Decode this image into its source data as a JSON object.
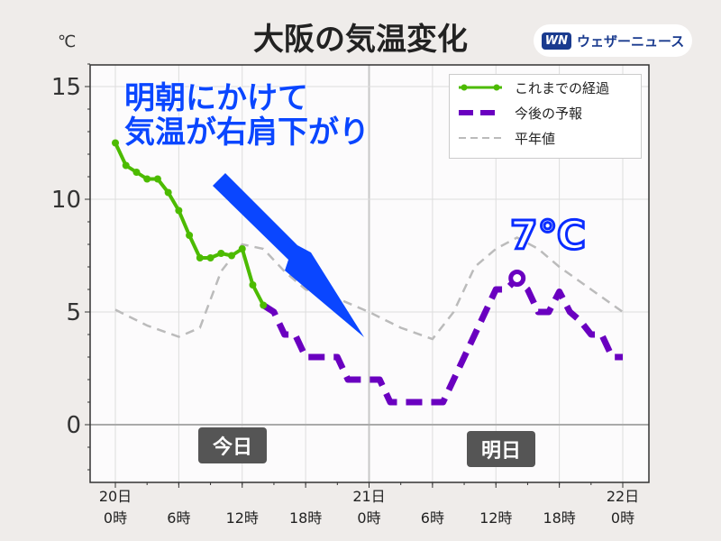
{
  "title": "大阪の気温変化",
  "logo": {
    "mark": "WN",
    "name": "ウェザーニュース"
  },
  "unit": "℃",
  "annotation": {
    "line1": "明朝にかけて",
    "line2": "気温が右肩下がり",
    "peak": "7℃"
  },
  "day_labels": {
    "today": "今日",
    "tomorrow": "明日"
  },
  "chart_data": {
    "type": "line",
    "title": "大阪の気温変化",
    "ylabel": "℃",
    "ylim": [
      -2.5,
      16
    ],
    "xlim": [
      0,
      48
    ],
    "yticks": [
      0,
      5,
      10,
      15
    ],
    "xticks": [
      {
        "h": 0,
        "l1": "20日",
        "l2": "0時"
      },
      {
        "h": 6,
        "l1": "",
        "l2": "6時"
      },
      {
        "h": 12,
        "l1": "",
        "l2": "12時"
      },
      {
        "h": 18,
        "l1": "",
        "l2": "18時"
      },
      {
        "h": 24,
        "l1": "21日",
        "l2": "0時"
      },
      {
        "h": 30,
        "l1": "",
        "l2": "6時"
      },
      {
        "h": 36,
        "l1": "",
        "l2": "12時"
      },
      {
        "h": 42,
        "l1": "",
        "l2": "18時"
      },
      {
        "h": 48,
        "l1": "22日",
        "l2": "0時"
      }
    ],
    "legend_position": "top-right",
    "series": [
      {
        "name": "これまでの経過",
        "color": "#4cbb00",
        "x": [
          0,
          1,
          2,
          3,
          4,
          5,
          6,
          7,
          8,
          9,
          10,
          11,
          12,
          13,
          14
        ],
        "y": [
          12.5,
          11.5,
          11.2,
          10.9,
          10.9,
          10.3,
          9.5,
          8.4,
          7.4,
          7.4,
          7.6,
          7.5,
          7.8,
          6.2,
          5.3
        ]
      },
      {
        "name": "今後の予報",
        "color": "#6a00c0",
        "x": [
          14,
          15,
          16,
          17,
          18,
          19,
          20,
          21,
          22,
          23,
          24,
          25,
          26,
          27,
          28,
          29,
          30,
          31,
          32,
          33,
          34,
          35,
          36,
          37,
          38,
          39,
          40,
          41,
          42,
          43,
          44,
          45,
          46,
          47,
          48
        ],
        "y": [
          5.3,
          5,
          4,
          4,
          3,
          3,
          3,
          3,
          2,
          2,
          2,
          2,
          1,
          1,
          1,
          1,
          1,
          1,
          2,
          3,
          4,
          5,
          6,
          6,
          6.5,
          6,
          5,
          5,
          5.9,
          5,
          4.6,
          4,
          4,
          3,
          3
        ]
      },
      {
        "name": "平年値",
        "color": "#bbbbbb",
        "x": [
          0,
          3,
          6,
          8,
          10,
          12,
          14,
          16,
          18,
          21,
          24,
          27,
          30,
          32,
          34,
          36,
          38,
          40,
          42,
          45,
          48
        ],
        "y": [
          5.1,
          4.4,
          3.9,
          4.3,
          6.8,
          8.0,
          7.8,
          6.8,
          6.0,
          5.6,
          5.0,
          4.3,
          3.8,
          5.0,
          7.0,
          7.8,
          8.3,
          7.8,
          7.0,
          6.0,
          5.0
        ]
      }
    ]
  }
}
